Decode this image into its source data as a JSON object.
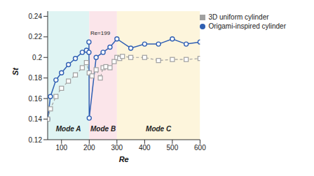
{
  "chart_data": {
    "type": "line",
    "x_label": "Re",
    "y_label": "St",
    "xlim": [
      50,
      600
    ],
    "xticks": [
      100,
      200,
      300,
      400,
      500,
      600
    ],
    "ylim": [
      0.12,
      0.245
    ],
    "yticks": [
      0.12,
      0.14,
      0.16,
      0.18,
      0.2,
      0.22,
      0.24
    ],
    "grid": false,
    "legend": "upper right",
    "series": [
      {
        "name": "Origami-inspired cylinder",
        "color": "#2f5fb3",
        "marker": "circle",
        "line_style": "solid",
        "x": [
          50,
          60,
          80,
          100,
          125,
          150,
          175,
          190,
          199,
          199,
          200,
          225,
          250,
          275,
          300,
          350,
          400,
          450,
          500,
          550,
          600
        ],
        "values": [
          0.14,
          0.162,
          0.178,
          0.185,
          0.193,
          0.199,
          0.205,
          0.207,
          0.205,
          0.215,
          0.141,
          0.2,
          0.205,
          0.21,
          0.218,
          0.209,
          0.213,
          0.213,
          0.218,
          0.213,
          0.215
        ]
      },
      {
        "name": "3D uniform cylinder",
        "color": "#a0a0a0",
        "marker": "square",
        "line_style": "dashed",
        "x": [
          50,
          60,
          80,
          100,
          125,
          150,
          175,
          190,
          200,
          210,
          225,
          240,
          250,
          260,
          275,
          290,
          300,
          310,
          320,
          350,
          400,
          450,
          500,
          550,
          600
        ],
        "values": [
          0.14,
          0.15,
          0.162,
          0.17,
          0.177,
          0.183,
          0.19,
          0.195,
          0.185,
          0.182,
          0.188,
          0.18,
          0.19,
          0.191,
          0.19,
          0.196,
          0.2,
          0.199,
          0.201,
          0.2,
          0.2,
          0.197,
          0.198,
          0.198,
          0.199
        ]
      }
    ],
    "regions": [
      {
        "label": "Mode A",
        "range": [
          50,
          200
        ],
        "color": "#dff4f3"
      },
      {
        "label": "Mode B",
        "range": [
          200,
          300
        ],
        "color": "#fbe5ea"
      },
      {
        "label": "Mode C",
        "range": [
          300,
          600
        ],
        "color": "#fdf5dc"
      }
    ],
    "annotations": [
      {
        "text": "Re=199",
        "x": 199,
        "y": 0.224
      }
    ]
  }
}
